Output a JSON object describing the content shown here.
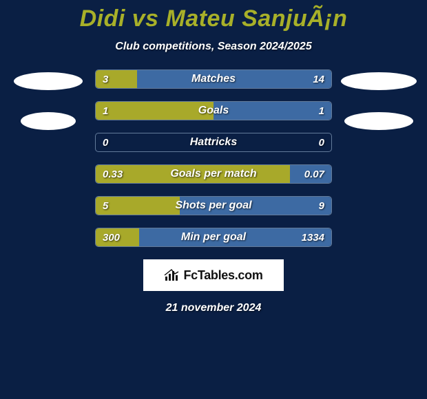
{
  "title": "Didi vs Mateu SanjuÃ¡n",
  "subtitle": "Club competitions, Season 2024/2025",
  "date": "21 november 2024",
  "logo_text": "FcTables.com",
  "colors": {
    "background": "#0a1f44",
    "title": "#a8b029",
    "bar_left_fill": "#a8a92a",
    "bar_right_fill": "#3d6aa3",
    "bar_border": "#637b9a",
    "text": "#ffffff"
  },
  "bars": [
    {
      "label": "Matches",
      "left_val": "3",
      "right_val": "14",
      "left_pct": 17.6,
      "right_pct": 82.4
    },
    {
      "label": "Goals",
      "left_val": "1",
      "right_val": "1",
      "left_pct": 50.0,
      "right_pct": 50.0
    },
    {
      "label": "Hattricks",
      "left_val": "0",
      "right_val": "0",
      "left_pct": 0.0,
      "right_pct": 0.0
    },
    {
      "label": "Goals per match",
      "left_val": "0.33",
      "right_val": "0.07",
      "left_pct": 82.5,
      "right_pct": 17.5
    },
    {
      "label": "Shots per goal",
      "left_val": "5",
      "right_val": "9",
      "left_pct": 35.7,
      "right_pct": 64.3
    },
    {
      "label": "Min per goal",
      "left_val": "300",
      "right_val": "1334",
      "left_pct": 18.4,
      "right_pct": 81.6
    }
  ]
}
